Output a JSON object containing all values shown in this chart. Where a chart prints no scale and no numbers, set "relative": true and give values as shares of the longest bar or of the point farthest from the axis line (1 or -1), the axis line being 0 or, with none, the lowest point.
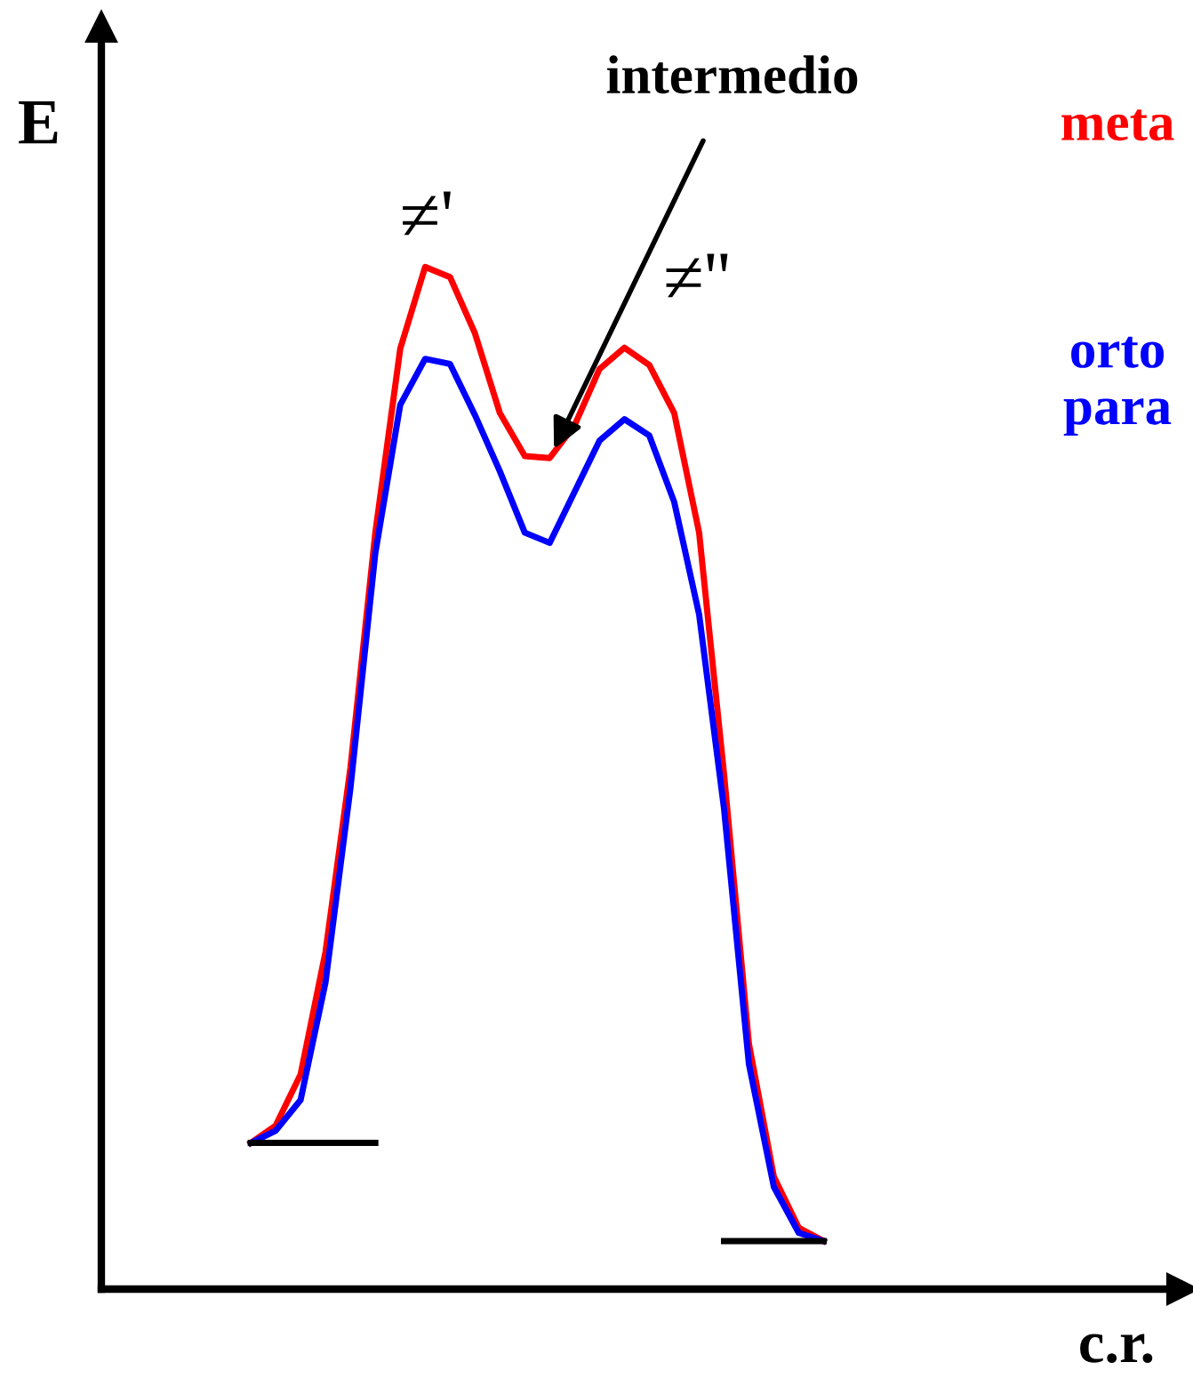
{
  "chart_data": {
    "type": "line",
    "relative": true,
    "ylabel": "E",
    "xlabel": "c.r.",
    "marker": "none",
    "line_style": "solid",
    "categories": [
      null,
      null,
      null,
      null,
      null,
      null,
      null,
      null,
      null,
      null,
      null,
      null,
      null,
      null,
      null,
      null,
      null,
      null,
      null,
      null,
      null,
      null,
      null,
      null
    ],
    "series": [
      {
        "name": "meta",
        "color": "#ff0000",
        "values": [
          0.143,
          0.16,
          0.21,
          0.33,
          0.51,
          0.74,
          0.92,
          1.0,
          0.99,
          0.935,
          0.857,
          0.815,
          0.813,
          0.845,
          0.9,
          0.921,
          0.904,
          0.857,
          0.74,
          0.504,
          0.24,
          0.11,
          0.06,
          0.047
        ]
      },
      {
        "name": "orto\npara",
        "color": "#0000ff",
        "values": [
          0.143,
          0.155,
          0.185,
          0.3,
          0.49,
          0.72,
          0.865,
          0.91,
          0.905,
          0.855,
          0.8,
          0.74,
          0.73,
          0.78,
          0.83,
          0.851,
          0.835,
          0.77,
          0.66,
          0.47,
          0.22,
          0.1,
          0.055,
          0.047
        ]
      },
      {
        "color": "#000000",
        "values": [
          0.143,
          0.143,
          0.143,
          0.143,
          0.143,
          0.143,
          null,
          null,
          null,
          null,
          null,
          null,
          null,
          null,
          null,
          null,
          null,
          null,
          null,
          null,
          null,
          null,
          null,
          null
        ]
      },
      {
        "color": "#000000",
        "values": [
          null,
          null,
          null,
          null,
          null,
          null,
          null,
          null,
          null,
          null,
          null,
          null,
          null,
          null,
          null,
          null,
          null,
          null,
          null,
          0.047,
          0.047,
          0.047,
          0.047,
          0.047
        ]
      }
    ],
    "annotations": [
      "intermedio",
      "≠'",
      "≠''"
    ]
  }
}
